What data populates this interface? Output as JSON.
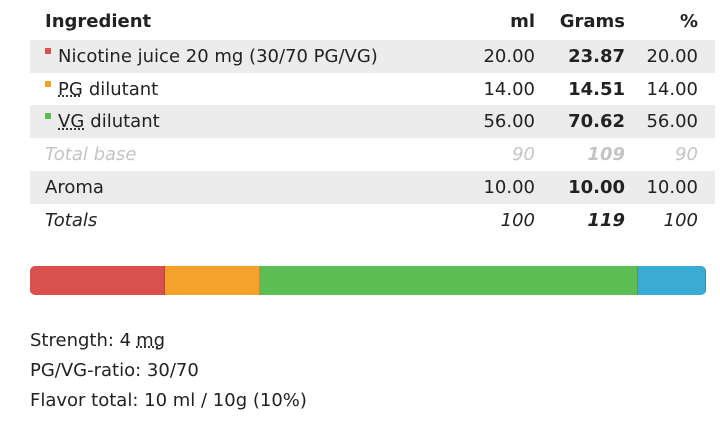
{
  "table": {
    "header": [
      "Ingredient",
      "ml",
      "Grams",
      "%"
    ],
    "rows": [
      {
        "cells": [
          "Nicotine juice 20 mg (30/70 PG/VG)",
          "20.00",
          "23.87",
          "20.00"
        ],
        "color": "#d9504c",
        "marker": true,
        "shade": true
      },
      {
        "abbr": "PG",
        "cells": [
          "dilutant",
          "14.00",
          "14.51",
          "14.00"
        ],
        "color": "#f5a22c",
        "marker": true,
        "shade": false
      },
      {
        "abbr": "VG",
        "cells": [
          "dilutant",
          "56.00",
          "70.62",
          "56.00"
        ],
        "color": "#5cbd55",
        "marker": true,
        "shade": true
      },
      {
        "cells": [
          "Total base",
          "90",
          "109",
          "90"
        ],
        "style": "muted",
        "shade": false
      },
      {
        "cells": [
          "Aroma",
          "10.00",
          "10.00",
          "10.00"
        ],
        "color": "#3aabd2",
        "marker": false,
        "shade": true
      },
      {
        "cells": [
          "Totals",
          "100",
          "119",
          "100"
        ],
        "style": "italic",
        "shade": false
      }
    ]
  },
  "summary": [
    {
      "text": "Strength: 4",
      "unit": "mg"
    },
    {
      "text": "PG/VG-ratio: 30/70"
    },
    {
      "text": "Flavor total: 10 ml / 10g (10%)"
    }
  ]
}
